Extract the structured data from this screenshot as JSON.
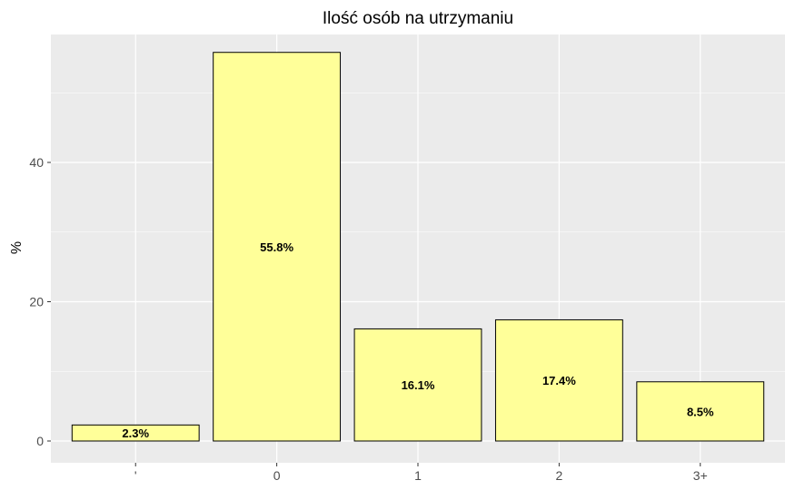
{
  "chart_data": {
    "type": "bar",
    "title": "Ilość osób na utrzymaniu",
    "xlabel": "",
    "ylabel": "%",
    "categories": [
      "'",
      "0",
      "1",
      "2",
      "3+"
    ],
    "values": [
      2.3,
      55.8,
      16.1,
      17.4,
      8.5
    ],
    "data_labels": [
      "2.3%",
      "55.8%",
      "16.1%",
      "17.4%",
      "8.5%"
    ],
    "yticks": [
      0,
      20,
      40
    ],
    "ylim": [
      0,
      58.6
    ],
    "grid": true,
    "legend": "none",
    "colors": {
      "bar_fill": "#ffff99",
      "bar_stroke": "#000000",
      "panel_background": "#ebebeb",
      "grid_line": "#ffffff"
    }
  }
}
